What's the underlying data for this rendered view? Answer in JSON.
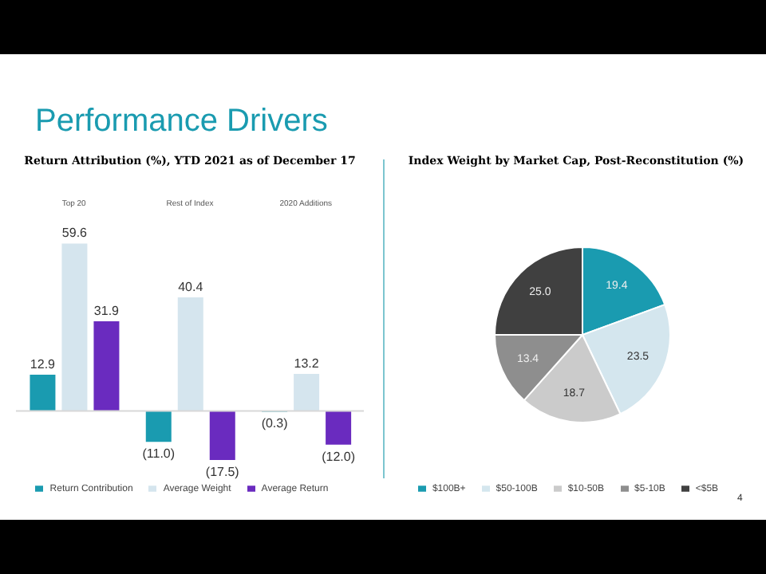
{
  "chart_data": [
    {
      "type": "bar",
      "title": "Return Attribution (%), YTD 2021 as of December 17",
      "annotations": [
        "Performance Drivers"
      ],
      "categories": [
        "Top 20",
        "Rest of Index",
        "2020 Additions"
      ],
      "series": [
        {
          "name": "Return Contribution",
          "color": "#1a9bb0",
          "values": [
            12.9,
            -11.0,
            -0.3
          ],
          "value_labels": [
            "12.9",
            "(11.0)",
            "(0.3)"
          ]
        },
        {
          "name": "Average Weight",
          "color": "#d5e5ee",
          "values": [
            59.6,
            40.4,
            13.2
          ],
          "value_labels": [
            "59.6",
            "40.4",
            "13.2"
          ]
        },
        {
          "name": "Average Return",
          "color": "#6a2bbf",
          "values": [
            31.9,
            -17.5,
            -12.0
          ],
          "value_labels": [
            "31.9",
            "(17.5)",
            "(12.0)"
          ]
        }
      ],
      "legend": "bottom"
    },
    {
      "type": "pie",
      "title": "Index Weight by Market Cap, Post-Reconstitution (%)",
      "annotations": [
        "4"
      ],
      "categories": [
        "$100B+",
        "$50-100B",
        "$10-50B",
        "$5-10B",
        "<$5B"
      ],
      "values": [
        19.4,
        23.5,
        18.7,
        13.4,
        25.0
      ],
      "colors": [
        "#1a9bb0",
        "#d4e6ee",
        "#cbcbcb",
        "#8e8e8e",
        "#404040"
      ],
      "value_labels": [
        "19.4",
        "23.5",
        "18.7",
        "13.4",
        "25.0"
      ],
      "legend": "bottom"
    }
  ]
}
